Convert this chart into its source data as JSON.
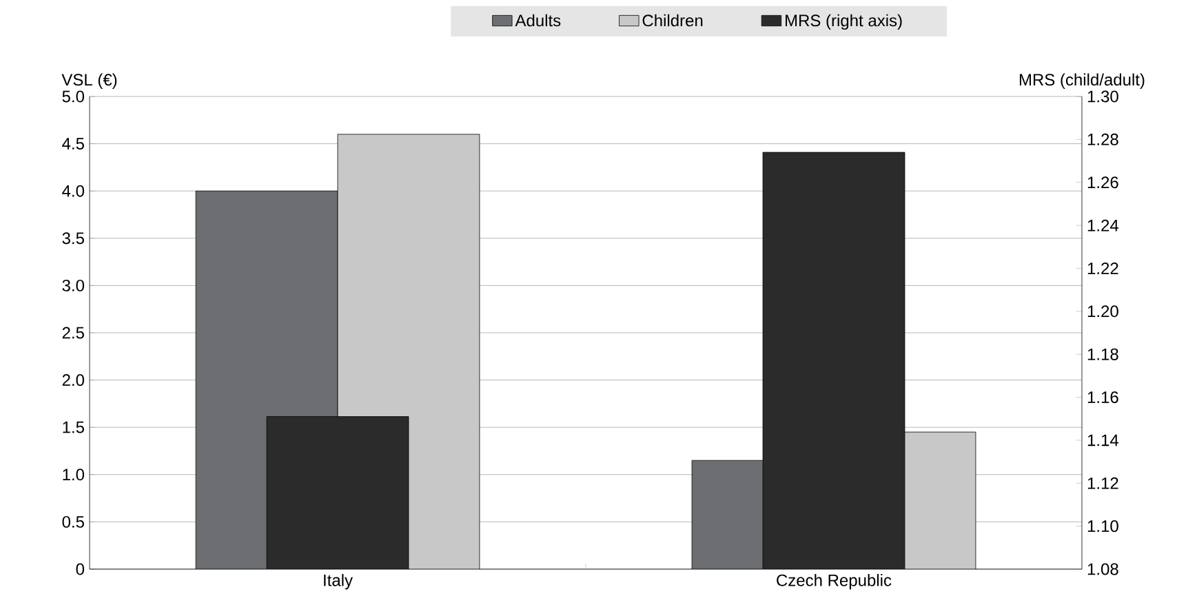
{
  "chart_data": {
    "type": "bar",
    "categories": [
      "Italy",
      "Czech Republic"
    ],
    "ylabel": "VSL (€)",
    "y2label": "MRS (child/adult)",
    "series": [
      {
        "name": "Adults",
        "color": "#6d6e71",
        "values": [
          4.0,
          1.15
        ]
      },
      {
        "name": "Children",
        "color": "#c8c8c8",
        "values": [
          4.6,
          1.45
        ]
      },
      {
        "name": "MRS (right axis)",
        "color": "#2b2b2b",
        "values": [
          1.151,
          1.274
        ],
        "axis": "y2"
      }
    ],
    "ylim": [
      0,
      5
    ],
    "yticks": [
      0,
      0.5,
      {
        "value": 1,
        "label": "1.0"
      },
      1.5,
      {
        "value": 2,
        "label": "2.0"
      },
      2.5,
      {
        "value": 3,
        "label": "3.0"
      },
      3.5,
      {
        "value": 4,
        "label": "4.0"
      },
      4.5,
      {
        "value": 5,
        "label": "5.0"
      }
    ],
    "y2lim": [
      1.08,
      1.3
    ],
    "y2ticks": [
      1.08,
      {
        "value": 1.1,
        "label": "1.10"
      },
      1.12,
      1.14,
      1.16,
      1.18,
      {
        "value": 1.2,
        "label": "1.20"
      },
      1.22,
      1.24,
      1.26,
      1.28,
      {
        "value": 1.3,
        "label": "1.30"
      }
    ],
    "grid": "y",
    "legend": "top"
  }
}
